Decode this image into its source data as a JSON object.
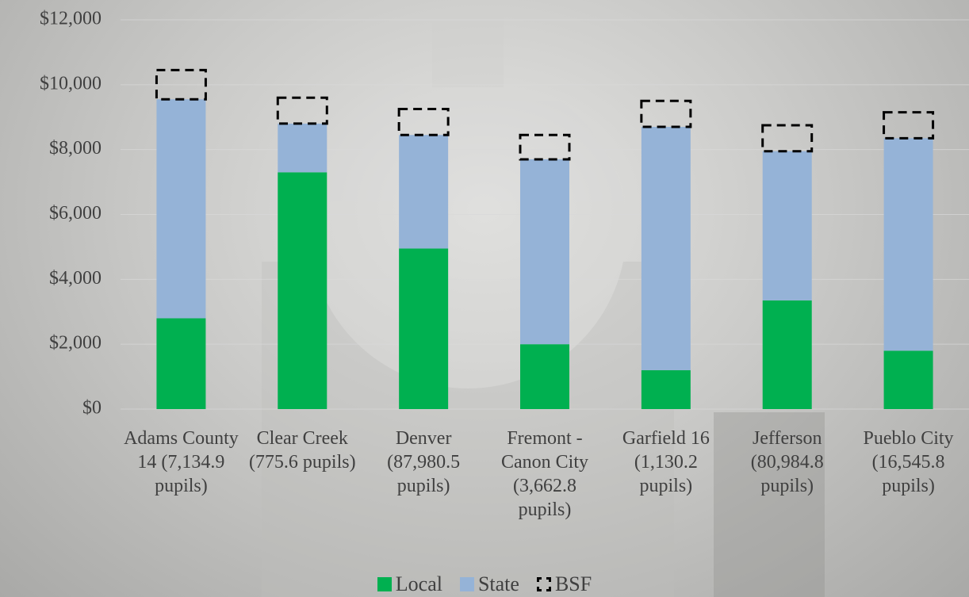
{
  "chart_data": {
    "type": "stacked_bar",
    "categories": [
      "Adams County 14 (7,134.9 pupils)",
      "Clear Creek (775.6 pupils)",
      "Denver (87,980.5 pupils)",
      "Fremont - Canon City (3,662.8 pupils)",
      "Garfield 16 (1,130.2 pupils)",
      "Jefferson (80,984.8 pupils)",
      "Pueblo City (16,545.8 pupils)"
    ],
    "series": [
      {
        "name": "Local",
        "color": "#00b050",
        "values": [
          2800,
          7300,
          4950,
          2000,
          1200,
          3350,
          1800
        ]
      },
      {
        "name": "State",
        "color": "#95b3d7",
        "values": [
          6750,
          1500,
          3500,
          5700,
          7500,
          4600,
          6550
        ]
      },
      {
        "name": "BSF",
        "color": "#000000",
        "values": [
          900,
          800,
          800,
          750,
          800,
          800,
          800
        ]
      }
    ],
    "ylim": [
      0,
      12000
    ],
    "yticks": [
      {
        "value": 0,
        "label": "$0"
      },
      {
        "value": 2000,
        "label": "$2,000"
      },
      {
        "value": 4000,
        "label": "$4,000"
      },
      {
        "value": 6000,
        "label": "$6,000"
      },
      {
        "value": 8000,
        "label": "$8,000"
      },
      {
        "value": 10000,
        "label": "$10,000"
      },
      {
        "value": 12000,
        "label": "$12,000"
      }
    ],
    "grid": true
  }
}
